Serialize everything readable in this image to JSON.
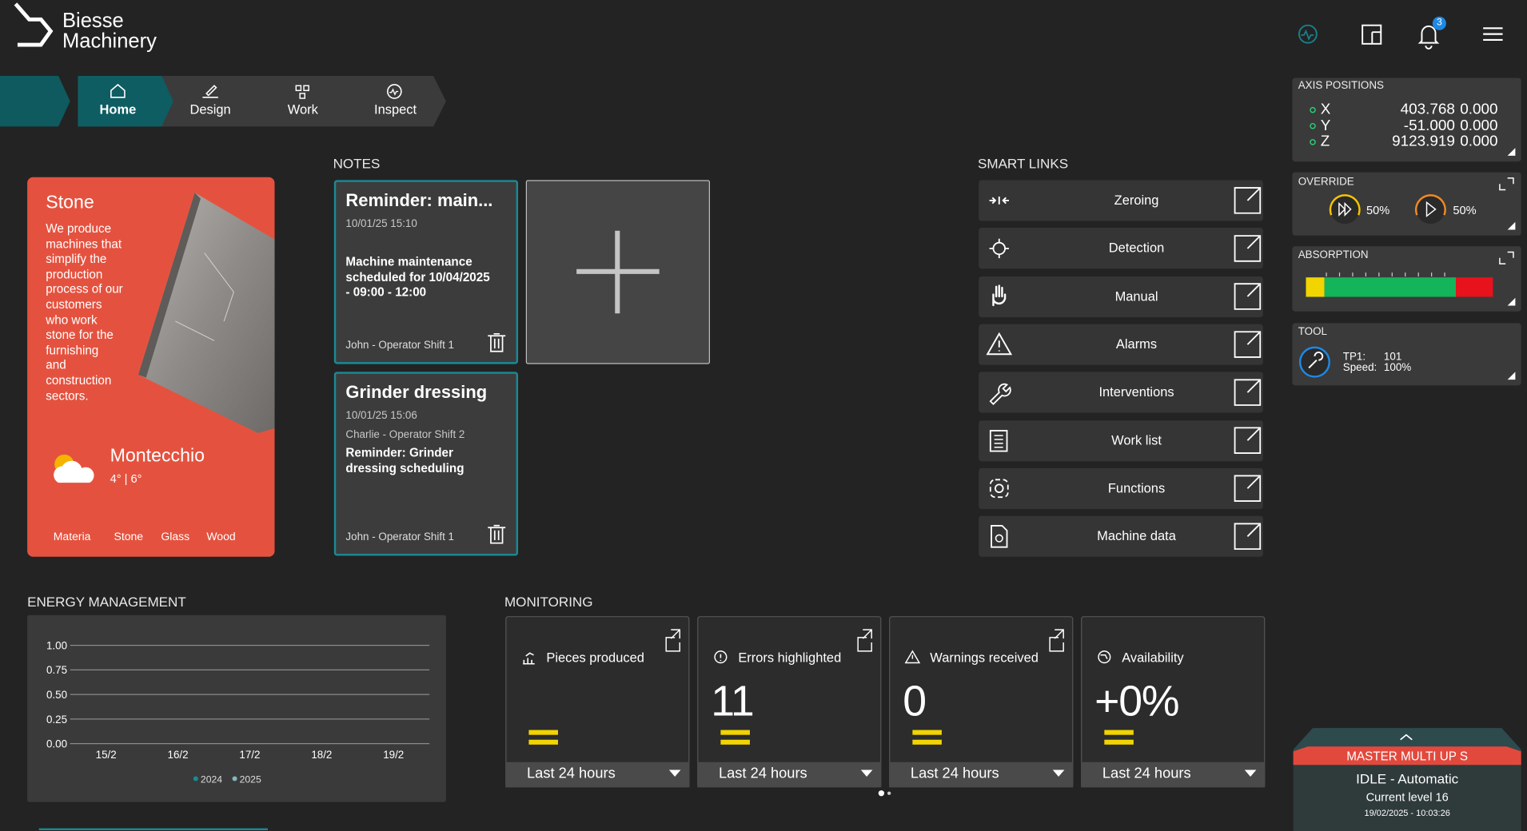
{
  "header": {
    "brand": [
      "Biesse",
      "Machinery"
    ],
    "notification_count": "3"
  },
  "nav": [
    "Home",
    "Design",
    "Work",
    "Inspect"
  ],
  "material_card": {
    "title": "Stone",
    "description": [
      "We produce",
      "machines that",
      "simplify the",
      "production",
      "process of our",
      "customers",
      "who work",
      "stone for the",
      "furnishing",
      "and",
      "construction",
      "sectors."
    ],
    "city": "Montecchio",
    "temperature": "4° | 6°",
    "tabs": [
      "Materia",
      "Stone",
      "Glass",
      "Wood"
    ]
  },
  "notes": {
    "title": "NOTES",
    "items": [
      {
        "title": "Reminder: main...",
        "date": "10/01/25 15:10",
        "body": [
          "Machine maintenance",
          "scheduled for 10/04/2025",
          "- 09:00 - 12:00"
        ],
        "author": "John - Operator Shift 1"
      },
      {
        "title": "Grinder dressing",
        "date": "10/01/25 15:06",
        "subtitle": "Charlie - Operator Shift 2",
        "body": [
          "Reminder: Grinder",
          "dressing scheduling"
        ],
        "author": "John - Operator Shift  1"
      }
    ]
  },
  "smart_links": {
    "title": "SMART LINKS",
    "items": [
      "Zeroing",
      "Detection",
      "Manual",
      "Alarms",
      "Interventions",
      "Work list",
      "Functions",
      "Machine data"
    ]
  },
  "axis_positions": {
    "title": "AXIS POSITIONS",
    "rows": [
      [
        "X",
        "403.768",
        "0.000"
      ],
      [
        "Y",
        "-51.000",
        "0.000"
      ],
      [
        "Z",
        "9123.919",
        "0.000"
      ]
    ]
  },
  "override": {
    "title": "OVERRIDE",
    "values": [
      "50%",
      "50%"
    ]
  },
  "absorption": {
    "title": "ABSORPTION"
  },
  "tool": {
    "title": "TOOL",
    "rows": [
      [
        "TP1:",
        "101"
      ],
      [
        "Speed:",
        "100%"
      ]
    ]
  },
  "energy": {
    "title": "ENERGY MANAGEMENT",
    "chart": {
      "type": "line",
      "categories": [
        "15/2",
        "16/2",
        "17/2",
        "18/2",
        "19/2"
      ],
      "ylim": [
        0,
        1
      ],
      "yticks": [
        {
          "value": 0,
          "label": "0.00"
        },
        {
          "value": 0.25,
          "label": "0.25"
        },
        {
          "value": 0.5,
          "label": "0.50"
        },
        {
          "value": 0.75,
          "label": "0.75"
        },
        {
          "value": 1,
          "label": "1.00"
        }
      ],
      "grid": true,
      "series": [
        {
          "name": "2024",
          "color": "#1a8a95"
        },
        {
          "name": "2025",
          "color": "#7fb8bd"
        }
      ]
    }
  },
  "monitoring": {
    "title": "MONITORING",
    "cards": [
      {
        "label": "Pieces produced",
        "period": "Last 24 hours"
      },
      {
        "label": "Errors highlighted",
        "value": "11",
        "period": "Last 24 hours"
      },
      {
        "label": "Warnings received",
        "value": "0",
        "period": "Last 24 hours"
      },
      {
        "label": "Availability",
        "value": "+0%",
        "period": "Last 24 hours"
      }
    ]
  },
  "status": {
    "title": "MASTER MULTI UP S",
    "state": "IDLE - Automatic",
    "level": "Current level 16",
    "timestamp": "19/02/2025 - 10:03:26"
  }
}
